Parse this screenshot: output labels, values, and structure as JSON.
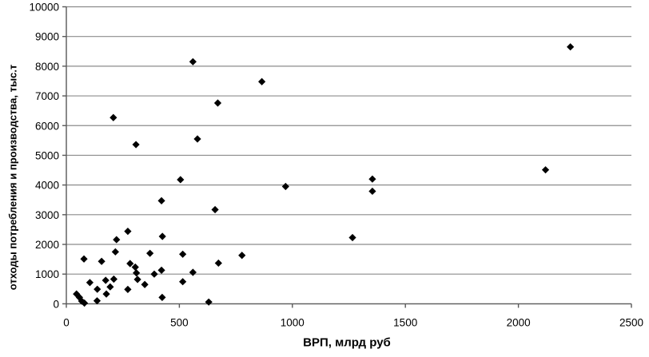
{
  "chart_data": {
    "type": "scatter",
    "title": "",
    "xlabel": "ВРП, млрд руб",
    "ylabel": "отходы потребления и производства, тыс.т",
    "xlim": [
      0,
      2500
    ],
    "ylim": [
      0,
      10000
    ],
    "x_ticks": [
      0,
      500,
      1000,
      1500,
      2000,
      2500
    ],
    "y_ticks": [
      0,
      1000,
      2000,
      3000,
      4000,
      5000,
      6000,
      7000,
      8000,
      9000,
      10000
    ],
    "grid": "horizontal",
    "legend_position": "none",
    "marker": "diamond",
    "marker_color": "#000000",
    "gridline_color": "#8c8c8c",
    "axis_color": "#595959",
    "points": [
      [
        45,
        330
      ],
      [
        58,
        215
      ],
      [
        68,
        90
      ],
      [
        78,
        1510
      ],
      [
        80,
        25
      ],
      [
        104,
        715
      ],
      [
        136,
        100
      ],
      [
        137,
        490
      ],
      [
        156,
        1430
      ],
      [
        174,
        790
      ],
      [
        177,
        330
      ],
      [
        194,
        570
      ],
      [
        208,
        6270
      ],
      [
        210,
        830
      ],
      [
        217,
        1750
      ],
      [
        222,
        2160
      ],
      [
        272,
        2440
      ],
      [
        272,
        485
      ],
      [
        282,
        1355
      ],
      [
        305,
        1235
      ],
      [
        308,
        5360
      ],
      [
        310,
        1040
      ],
      [
        315,
        820
      ],
      [
        347,
        650
      ],
      [
        370,
        1700
      ],
      [
        389,
        1000
      ],
      [
        421,
        1130
      ],
      [
        421,
        3470
      ],
      [
        424,
        215
      ],
      [
        425,
        2270
      ],
      [
        505,
        4180
      ],
      [
        515,
        1670
      ],
      [
        515,
        745
      ],
      [
        560,
        1060
      ],
      [
        560,
        8150
      ],
      [
        580,
        5550
      ],
      [
        630,
        60
      ],
      [
        658,
        3170
      ],
      [
        670,
        6760
      ],
      [
        673,
        1370
      ],
      [
        777,
        1630
      ],
      [
        865,
        7480
      ],
      [
        970,
        3950
      ],
      [
        1266,
        2230
      ],
      [
        1354,
        3790
      ],
      [
        1354,
        4200
      ],
      [
        2120,
        4510
      ],
      [
        2230,
        8650
      ]
    ]
  }
}
